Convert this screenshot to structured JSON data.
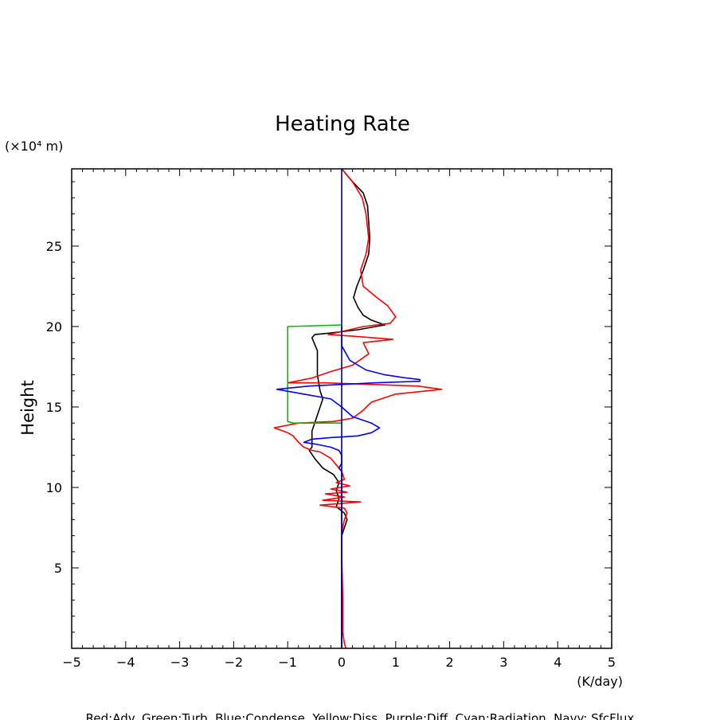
{
  "chart_data": {
    "type": "line",
    "title": "Heating Rate",
    "xlabel": "(K/day)",
    "ylabel": "Height",
    "yunit": "(×10⁴ m)",
    "xlim": [
      -5,
      5
    ],
    "ylim": [
      0,
      29.8
    ],
    "xticks": [
      -5,
      -4,
      -3,
      -2,
      -1,
      0,
      1,
      2,
      3,
      4,
      5
    ],
    "yticks": [
      5,
      10,
      15,
      20,
      25
    ],
    "grid": false,
    "legend_note": "Red:Adv. Green:Turb. Blue:Condense. Yellow:Diss. Purple:Diff. Cyan:Radiation. Navy: SfcFlux",
    "series": [
      {
        "color": "#000000",
        "points": [
          [
            0,
            29.8
          ],
          [
            0.2,
            29.0
          ],
          [
            0.4,
            28.3
          ],
          [
            0.48,
            27.5
          ],
          [
            0.5,
            26.5
          ],
          [
            0.52,
            25.5
          ],
          [
            0.5,
            24.5
          ],
          [
            0.4,
            23.5
          ],
          [
            0.28,
            22.5
          ],
          [
            0.22,
            21.8
          ],
          [
            0.3,
            21.2
          ],
          [
            0.4,
            20.7
          ],
          [
            0.55,
            20.4
          ],
          [
            0.8,
            20.1
          ],
          [
            0.3,
            19.8
          ],
          [
            -0.2,
            19.6
          ],
          [
            -0.5,
            19.5
          ],
          [
            -0.55,
            19.3
          ],
          [
            -0.45,
            18.5
          ],
          [
            -0.45,
            17.0
          ],
          [
            -0.4,
            16.0
          ],
          [
            -0.35,
            15.5
          ],
          [
            -0.45,
            14.5
          ],
          [
            -0.55,
            13.5
          ],
          [
            -0.55,
            12.5
          ],
          [
            -0.6,
            12.3
          ],
          [
            -0.5,
            11.8
          ],
          [
            -0.35,
            11.2
          ],
          [
            -0.15,
            10.8
          ],
          [
            -0.05,
            10.3
          ],
          [
            -0.1,
            9.8
          ],
          [
            -0.05,
            9.3
          ],
          [
            -0.1,
            8.8
          ],
          [
            0.05,
            8.4
          ],
          [
            0.1,
            8.0
          ],
          [
            0.05,
            7.5
          ],
          [
            0,
            7.0
          ],
          [
            0,
            6.5
          ],
          [
            0,
            0
          ]
        ]
      },
      {
        "color": "#ff0000",
        "points": [
          [
            0,
            29.8
          ],
          [
            0.2,
            29.0
          ],
          [
            0.38,
            28.0
          ],
          [
            0.45,
            27.0
          ],
          [
            0.5,
            25.5
          ],
          [
            0.45,
            24.5
          ],
          [
            0.35,
            23.5
          ],
          [
            0.4,
            22.5
          ],
          [
            0.65,
            21.8
          ],
          [
            0.85,
            21.3
          ],
          [
            1.0,
            20.6
          ],
          [
            0.9,
            20.2
          ],
          [
            0.4,
            20.0
          ],
          [
            -0.25,
            19.5
          ],
          [
            0.2,
            19.4
          ],
          [
            0.95,
            19.2
          ],
          [
            0.4,
            19.0
          ],
          [
            0.5,
            18.3
          ],
          [
            0.2,
            17.6
          ],
          [
            -0.2,
            17.2
          ],
          [
            -0.55,
            16.8
          ],
          [
            -1.0,
            16.5
          ],
          [
            -0.3,
            16.5
          ],
          [
            1.4,
            16.3
          ],
          [
            1.85,
            16.1
          ],
          [
            1.0,
            15.8
          ],
          [
            0.55,
            15.3
          ],
          [
            0.4,
            14.8
          ],
          [
            0.2,
            14.3
          ],
          [
            -0.15,
            14.1
          ],
          [
            -0.8,
            14.0
          ],
          [
            -1.1,
            13.8
          ],
          [
            -1.25,
            13.7
          ],
          [
            -1.0,
            13.4
          ],
          [
            -0.9,
            13.2
          ],
          [
            -0.8,
            12.8
          ],
          [
            -0.7,
            12.5
          ],
          [
            -0.55,
            12.3
          ],
          [
            -0.4,
            12.2
          ],
          [
            -0.2,
            11.8
          ],
          [
            -0.1,
            11.4
          ],
          [
            0,
            11.0
          ],
          [
            0.05,
            10.5
          ],
          [
            -0.1,
            10.3
          ],
          [
            0.15,
            10.1
          ],
          [
            -0.2,
            9.9
          ],
          [
            0.1,
            9.7
          ],
          [
            -0.3,
            9.6
          ],
          [
            0.05,
            9.4
          ],
          [
            -0.35,
            9.2
          ],
          [
            0.35,
            9.1
          ],
          [
            -0.4,
            8.9
          ],
          [
            0.05,
            8.7
          ],
          [
            0.1,
            8.4
          ],
          [
            0.05,
            8.0
          ],
          [
            0,
            7.2
          ],
          [
            0,
            6.0
          ],
          [
            0.02,
            3.0
          ],
          [
            0.02,
            1.0
          ],
          [
            0.05,
            0.3
          ],
          [
            0.08,
            0.0
          ]
        ]
      },
      {
        "color": "#00c000",
        "points": [
          [
            0,
            20.1
          ],
          [
            -1.0,
            20.0
          ],
          [
            -1.0,
            14.1
          ],
          [
            -0.9,
            14.0
          ],
          [
            0,
            14.0
          ]
        ]
      },
      {
        "color": "#0000ff",
        "points": [
          [
            0,
            20.0
          ],
          [
            0,
            18.8
          ],
          [
            0.15,
            17.9
          ],
          [
            0.45,
            17.3
          ],
          [
            0.8,
            17.0
          ],
          [
            1.2,
            16.8
          ],
          [
            1.45,
            16.7
          ],
          [
            1.45,
            16.6
          ],
          [
            0.6,
            16.5
          ],
          [
            -0.6,
            16.3
          ],
          [
            -1.2,
            16.1
          ],
          [
            -0.7,
            15.8
          ],
          [
            -0.2,
            15.5
          ],
          [
            0,
            15.0
          ],
          [
            0.2,
            14.4
          ],
          [
            0.55,
            14.0
          ],
          [
            0.7,
            13.7
          ],
          [
            0.55,
            13.4
          ],
          [
            0.3,
            13.2
          ],
          [
            -0.2,
            13.1
          ],
          [
            -0.55,
            13.0
          ],
          [
            -0.7,
            12.8
          ],
          [
            -0.5,
            12.7
          ],
          [
            -0.2,
            12.5
          ],
          [
            -0.05,
            12.3
          ],
          [
            0,
            12.0
          ],
          [
            0,
            11.5
          ],
          [
            -0.05,
            11.2
          ],
          [
            0,
            11.0
          ],
          [
            0,
            0
          ]
        ]
      },
      {
        "color": "#000080",
        "points": [
          [
            0,
            29.8
          ],
          [
            0,
            0
          ]
        ]
      }
    ]
  }
}
